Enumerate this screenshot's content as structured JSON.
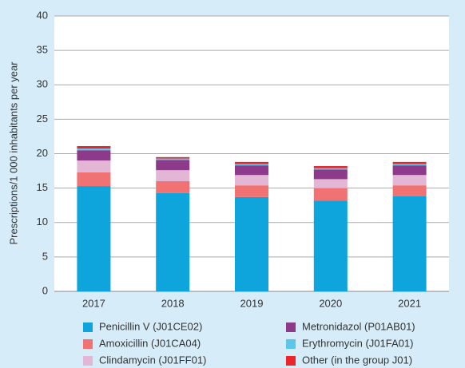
{
  "chart_data": {
    "type": "stacked_bar",
    "y_label": "Prescriptions/1 000 inhabitants per year",
    "categories": [
      "2017",
      "2018",
      "2019",
      "2020",
      "2021"
    ],
    "series": [
      {
        "name": "Penicillin V (J01CE02)",
        "color": "#0ea5dc",
        "values": [
          15.3,
          14.3,
          13.7,
          13.2,
          13.8
        ]
      },
      {
        "name": "Amoxicillin (J01CA04)",
        "color": "#f07272",
        "values": [
          2.0,
          1.7,
          1.7,
          1.8,
          1.6
        ]
      },
      {
        "name": "Clindamycin (J01FF01)",
        "color": "#e4b6d6",
        "values": [
          1.7,
          1.6,
          1.5,
          1.3,
          1.5
        ]
      },
      {
        "name": "Metronidazol (P01AB01)",
        "color": "#8e3a8a",
        "values": [
          1.5,
          1.5,
          1.4,
          1.4,
          1.4
        ]
      },
      {
        "name": "Erythromycin (J01FA01)",
        "color": "#5cc6ea",
        "values": [
          0.25,
          0.2,
          0.2,
          0.2,
          0.2
        ]
      },
      {
        "name": "Other (in the group J01)",
        "color": "#e8262c",
        "values": [
          0.35,
          0.2,
          0.3,
          0.3,
          0.3
        ]
      }
    ],
    "ylim": [
      0,
      40
    ],
    "yticks": [
      0,
      5,
      10,
      15,
      20,
      25,
      30,
      35,
      40
    ],
    "grid": true
  }
}
